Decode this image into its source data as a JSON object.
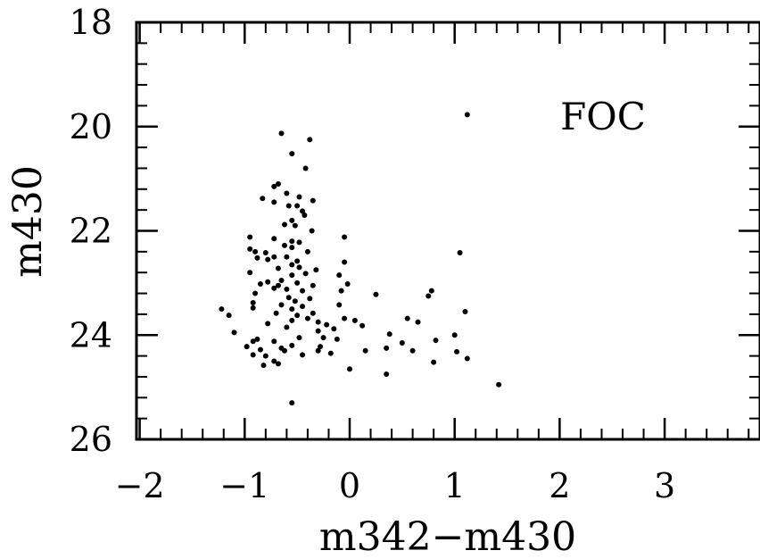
{
  "chart_data": {
    "type": "scatter",
    "title": "",
    "annotation": "FOC",
    "xlabel": "m342−m430",
    "ylabel": "m430",
    "xlim": [
      -2.0,
      3.85
    ],
    "ylim": [
      18,
      26
    ],
    "y_inverted": true,
    "grid": false,
    "x_ticks": [
      {
        "value": -2,
        "label": "−2"
      },
      {
        "value": -1,
        "label": "−1"
      },
      {
        "value": 0,
        "label": "0"
      },
      {
        "value": 1,
        "label": "1"
      },
      {
        "value": 2,
        "label": "2"
      },
      {
        "value": 3,
        "label": "3"
      }
    ],
    "y_ticks": [
      {
        "value": 18,
        "label": "18"
      },
      {
        "value": 20,
        "label": "20"
      },
      {
        "value": 22,
        "label": "22"
      },
      {
        "value": 24,
        "label": "24"
      },
      {
        "value": 26,
        "label": "26"
      }
    ],
    "x_minor_step": 0.2,
    "y_minor_step": 0.4,
    "points": [
      [
        1.12,
        19.77
      ],
      [
        -0.65,
        20.13
      ],
      [
        -0.38,
        20.25
      ],
      [
        -0.55,
        20.52
      ],
      [
        -0.42,
        20.8
      ],
      [
        -0.68,
        21.1
      ],
      [
        -0.72,
        21.15
      ],
      [
        -0.6,
        21.28
      ],
      [
        -0.83,
        21.38
      ],
      [
        -0.48,
        21.35
      ],
      [
        -0.35,
        21.42
      ],
      [
        -0.72,
        21.45
      ],
      [
        -0.58,
        21.52
      ],
      [
        -0.5,
        21.52
      ],
      [
        -0.45,
        21.62
      ],
      [
        -0.55,
        21.8
      ],
      [
        -0.62,
        21.88
      ],
      [
        -0.43,
        21.7
      ],
      [
        -0.52,
        21.9
      ],
      [
        -0.36,
        22.0
      ],
      [
        -0.72,
        22.15
      ],
      [
        -0.55,
        22.2
      ],
      [
        -0.48,
        22.22
      ],
      [
        -0.95,
        22.12
      ],
      [
        -0.05,
        22.12
      ],
      [
        -0.62,
        22.28
      ],
      [
        -0.95,
        22.35
      ],
      [
        -0.9,
        22.4
      ],
      [
        -0.8,
        22.42
      ],
      [
        -0.55,
        22.32
      ],
      [
        -0.4,
        22.4
      ],
      [
        1.05,
        22.42
      ],
      [
        -0.72,
        22.5
      ],
      [
        -0.6,
        22.5
      ],
      [
        -0.78,
        22.55
      ],
      [
        -0.88,
        22.52
      ],
      [
        -0.5,
        22.58
      ],
      [
        -0.05,
        22.6
      ],
      [
        -0.55,
        22.65
      ],
      [
        -0.68,
        22.72
      ],
      [
        -0.48,
        22.7
      ],
      [
        -0.32,
        22.75
      ],
      [
        -0.95,
        22.8
      ],
      [
        -0.55,
        22.85
      ],
      [
        -0.42,
        22.82
      ],
      [
        -0.1,
        22.85
      ],
      [
        -0.65,
        22.95
      ],
      [
        -0.78,
        22.98
      ],
      [
        -0.85,
        23.02
      ],
      [
        -0.5,
        23.0
      ],
      [
        -0.35,
        23.05
      ],
      [
        -0.68,
        23.05
      ],
      [
        -0.02,
        23.02
      ],
      [
        -0.6,
        23.12
      ],
      [
        -0.72,
        23.1
      ],
      [
        -0.45,
        23.15
      ],
      [
        -0.08,
        23.15
      ],
      [
        0.78,
        23.15
      ],
      [
        -0.9,
        23.2
      ],
      [
        0.25,
        23.22
      ],
      [
        0.75,
        23.25
      ],
      [
        -0.58,
        23.28
      ],
      [
        -0.52,
        23.35
      ],
      [
        -0.38,
        23.3
      ],
      [
        -0.92,
        23.38
      ],
      [
        -0.65,
        23.42
      ],
      [
        -0.45,
        23.45
      ],
      [
        -0.1,
        23.42
      ],
      [
        -0.92,
        23.48
      ],
      [
        -0.55,
        23.5
      ],
      [
        -1.22,
        23.5
      ],
      [
        1.1,
        23.55
      ],
      [
        -0.7,
        23.58
      ],
      [
        -0.5,
        23.62
      ],
      [
        -0.35,
        23.58
      ],
      [
        -1.15,
        23.62
      ],
      [
        -0.4,
        23.68
      ],
      [
        -0.05,
        23.68
      ],
      [
        0.05,
        23.72
      ],
      [
        -0.55,
        23.72
      ],
      [
        0.55,
        23.68
      ],
      [
        -0.3,
        23.75
      ],
      [
        0.65,
        23.75
      ],
      [
        -0.78,
        23.78
      ],
      [
        -0.22,
        23.8
      ],
      [
        0.12,
        23.82
      ],
      [
        -0.6,
        23.85
      ],
      [
        -0.15,
        23.88
      ],
      [
        -0.3,
        23.92
      ],
      [
        -1.1,
        23.95
      ],
      [
        0.38,
        23.98
      ],
      [
        1.0,
        24.0
      ],
      [
        -0.88,
        24.08
      ],
      [
        -0.48,
        24.05
      ],
      [
        -0.25,
        24.05
      ],
      [
        -0.12,
        24.08
      ],
      [
        0.82,
        24.1
      ],
      [
        -0.92,
        24.12
      ],
      [
        -0.72,
        24.12
      ],
      [
        0.5,
        24.15
      ],
      [
        -0.55,
        24.2
      ],
      [
        -0.28,
        24.22
      ],
      [
        -0.98,
        24.22
      ],
      [
        -0.65,
        24.25
      ],
      [
        0.35,
        24.25
      ],
      [
        -0.85,
        24.28
      ],
      [
        -0.62,
        24.3
      ],
      [
        -0.3,
        24.3
      ],
      [
        0.6,
        24.3
      ],
      [
        0.15,
        24.3
      ],
      [
        1.02,
        24.32
      ],
      [
        -0.18,
        24.35
      ],
      [
        -0.92,
        24.38
      ],
      [
        -0.45,
        24.38
      ],
      [
        -0.8,
        24.4
      ],
      [
        1.12,
        24.45
      ],
      [
        -0.72,
        24.5
      ],
      [
        0.8,
        24.52
      ],
      [
        -0.68,
        24.55
      ],
      [
        -0.82,
        24.58
      ],
      [
        0.0,
        24.65
      ],
      [
        0.35,
        24.75
      ],
      [
        1.42,
        24.95
      ],
      [
        -0.55,
        25.3
      ]
    ]
  }
}
